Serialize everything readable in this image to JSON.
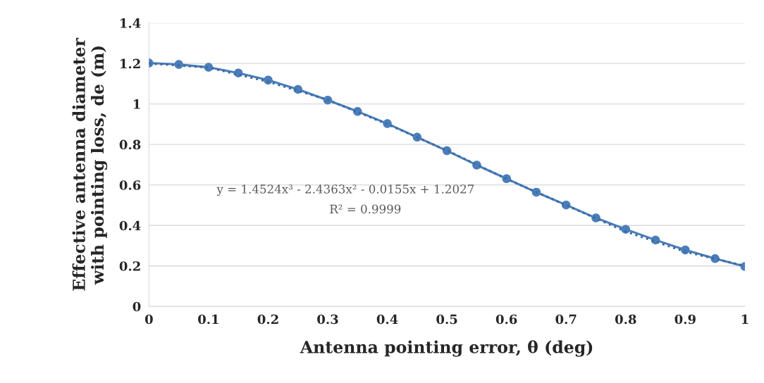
{
  "chart_data": {
    "type": "line",
    "xlabel": "Antenna pointing error, θ (deg)",
    "ylabel": "Effective antenna diameter\nwith pointing loss, de (m)",
    "x": [
      0,
      0.05,
      0.1,
      0.15,
      0.2,
      0.25,
      0.3,
      0.35,
      0.4,
      0.45,
      0.5,
      0.55,
      0.6,
      0.65,
      0.7,
      0.75,
      0.8,
      0.85,
      0.9,
      0.95,
      1
    ],
    "series": [
      {
        "color": "#4a7ebb",
        "marker": "circle",
        "line_style": "solid",
        "values": [
          1.202,
          1.195,
          1.181,
          1.153,
          1.118,
          1.072,
          1.019,
          0.963,
          0.903,
          0.836,
          0.769,
          0.698,
          0.631,
          0.564,
          0.501,
          0.437,
          0.381,
          0.328,
          0.279,
          0.236,
          0.197
        ]
      },
      {
        "type": "line",
        "color": "#3d6a9e",
        "marker": "none",
        "line_style": "dotted",
        "x": [
          0,
          0.1,
          0.2,
          0.3,
          0.4,
          0.5,
          0.6,
          0.7,
          0.8,
          0.9,
          1
        ],
        "values": [
          1.2,
          1.18,
          1.11,
          1.02,
          0.9,
          0.77,
          0.63,
          0.5,
          0.37,
          0.27,
          0.2
        ]
      }
    ],
    "annotations": [
      "y = 1.4524x³ - 2.4363x² - 0.0155x + 1.2027",
      "R² = 0.9999"
    ],
    "xlim": [
      0,
      1
    ],
    "xticks": [
      0,
      0.1,
      0.2,
      0.3,
      0.4,
      0.5,
      0.6,
      0.7,
      0.8,
      0.9,
      1
    ],
    "ylim": [
      0,
      1.4
    ],
    "yticks": [
      0,
      0.2,
      0.4,
      0.6,
      0.8,
      1,
      1.2,
      1.4
    ],
    "grid": "y",
    "legend": false
  }
}
